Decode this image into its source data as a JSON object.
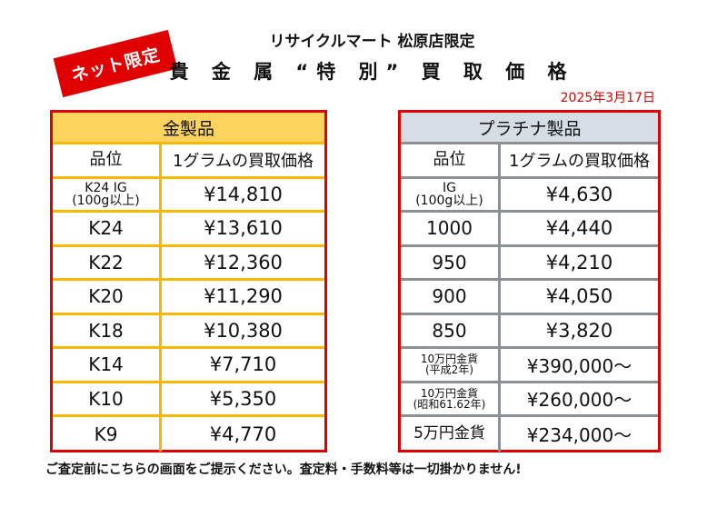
{
  "badge": "ネット限定",
  "title_line1": "リサイクルマート 松原店限定",
  "title_line2": "貴 金 属 “特 別” 買 取 価 格",
  "date": "2025年3月17日",
  "gold": {
    "title": "金製品",
    "col1": "品位",
    "col2": "1グラムの買取価格",
    "rows": [
      {
        "grade": "K24 IG\n(100g以上)",
        "price": "¥14,810"
      },
      {
        "grade": "K24",
        "price": "¥13,610"
      },
      {
        "grade": "K22",
        "price": "¥12,360"
      },
      {
        "grade": "K20",
        "price": "¥11,290"
      },
      {
        "grade": "K18",
        "price": "¥10,380"
      },
      {
        "grade": "K14",
        "price": "¥7,710"
      },
      {
        "grade": "K10",
        "price": "¥5,350"
      },
      {
        "grade": "K9",
        "price": "¥4,770"
      }
    ]
  },
  "platinum": {
    "title": "プラチナ製品",
    "col1": "品位",
    "col2": "1グラムの買取価格",
    "rows": [
      {
        "grade": "IG\n(100g以上)",
        "price": "¥4,630"
      },
      {
        "grade": "1000",
        "price": "¥4,440"
      },
      {
        "grade": "950",
        "price": "¥4,210"
      },
      {
        "grade": "900",
        "price": "¥4,050"
      },
      {
        "grade": "850",
        "price": "¥3,820"
      },
      {
        "grade": "10万円金貨\n(平成2年)",
        "price": "¥390,000〜"
      },
      {
        "grade": "10万円金貨\n(昭和61.62年)",
        "price": "¥260,000〜"
      },
      {
        "grade": "5万円金貨",
        "price": "¥234,000〜"
      }
    ]
  },
  "footer": "ご査定前にこちらの画面をご提示ください。査定料・手数料等は一切掛かりません!",
  "colors": {
    "red": "#e00000",
    "gold_header": "#fbd35d",
    "gold_border": "#f6b800",
    "plat_header": "#d6dde5",
    "plat_border": "#8a9096"
  }
}
